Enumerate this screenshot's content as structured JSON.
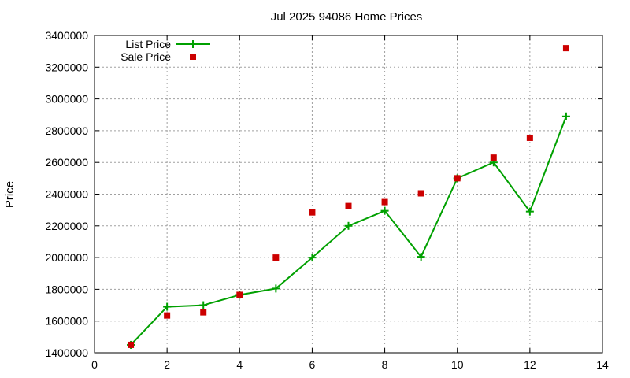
{
  "chart_data": {
    "type": "line",
    "title": "Jul 2025 94086 Home Prices",
    "xlabel": "",
    "ylabel": "Price",
    "xlim": [
      0,
      14
    ],
    "ylim": [
      1400000,
      3400000
    ],
    "xticks": [
      0,
      2,
      4,
      6,
      8,
      10,
      12,
      14
    ],
    "yticks": [
      1400000,
      1600000,
      1800000,
      2000000,
      2200000,
      2400000,
      2600000,
      2800000,
      3000000,
      3200000,
      3400000
    ],
    "grid": true,
    "legend_position": "top-left",
    "series": [
      {
        "name": "List Price",
        "style": "line+cross",
        "color": "#00a000",
        "x": [
          1,
          2,
          3,
          4,
          5,
          6,
          7,
          8,
          9,
          10,
          11,
          12,
          13
        ],
        "values": [
          1450000,
          1690000,
          1700000,
          1765000,
          1805000,
          2000000,
          2200000,
          2295000,
          2005000,
          2500000,
          2600000,
          2290000,
          2890000
        ]
      },
      {
        "name": "Sale Price",
        "style": "square",
        "color": "#cc0000",
        "x": [
          1,
          2,
          3,
          4,
          5,
          6,
          7,
          8,
          9,
          10,
          11,
          12,
          13
        ],
        "values": [
          1450000,
          1635000,
          1655000,
          1765000,
          2000000,
          2285000,
          2325000,
          2350000,
          2405000,
          2500000,
          2630000,
          2755000,
          3320000
        ]
      }
    ]
  }
}
